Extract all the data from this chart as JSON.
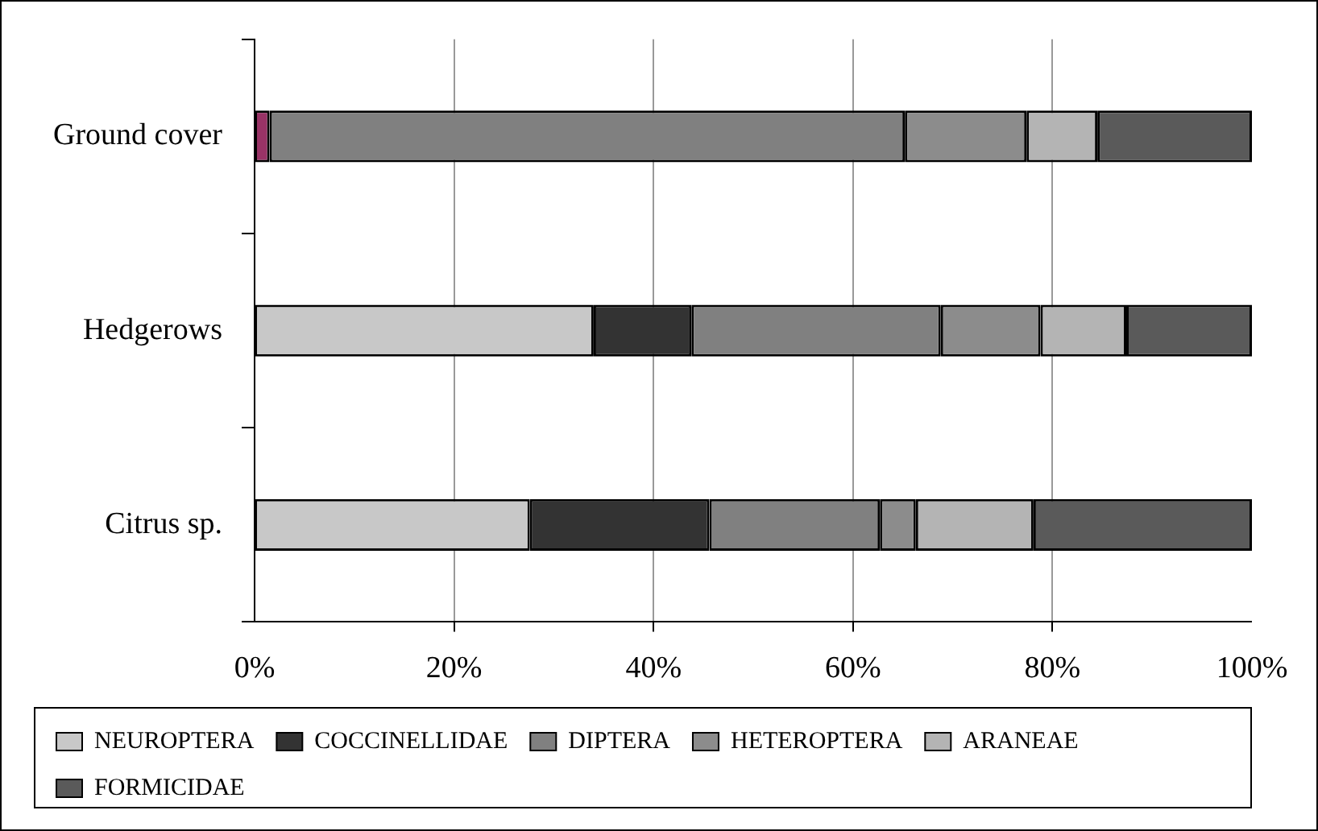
{
  "chart_data": {
    "type": "bar",
    "orientation": "horizontal",
    "stacked": true,
    "categories": [
      "Ground cover",
      "Hedgerows",
      "Citrus sp."
    ],
    "series": [
      {
        "name": "NEUROPTERA",
        "color": "#c8c8c8",
        "colors": [
          "#993366",
          "#c8c8c8",
          "#c8c8c8"
        ],
        "values": [
          1.5,
          34.0,
          27.6
        ]
      },
      {
        "name": "COCCINELLIDAE",
        "color": "#333333",
        "values": [
          0,
          9.8,
          18.0
        ]
      },
      {
        "name": "DIPTERA",
        "color": "#808080",
        "values": [
          63.7,
          25.0,
          17.1
        ]
      },
      {
        "name": "HETEROPTERA",
        "color": "#8c8c8c",
        "values": [
          12.2,
          10.0,
          3.6
        ]
      },
      {
        "name": "ARANEAE",
        "color": "#b4b4b4",
        "values": [
          7.1,
          8.6,
          11.8
        ]
      },
      {
        "name": "FORMICIDAE",
        "color": "#5a5a5a",
        "values": [
          15.5,
          12.6,
          21.9
        ]
      }
    ],
    "xlim": [
      0,
      100
    ],
    "xticks": [
      {
        "value": 0,
        "label": "0%"
      },
      {
        "value": 20,
        "label": "20%"
      },
      {
        "value": 40,
        "label": "40%"
      },
      {
        "value": 60,
        "label": "60%"
      },
      {
        "value": 80,
        "label": "80%"
      },
      {
        "value": 100,
        "label": "100%"
      }
    ],
    "grid": "x",
    "legend": "bottom"
  }
}
